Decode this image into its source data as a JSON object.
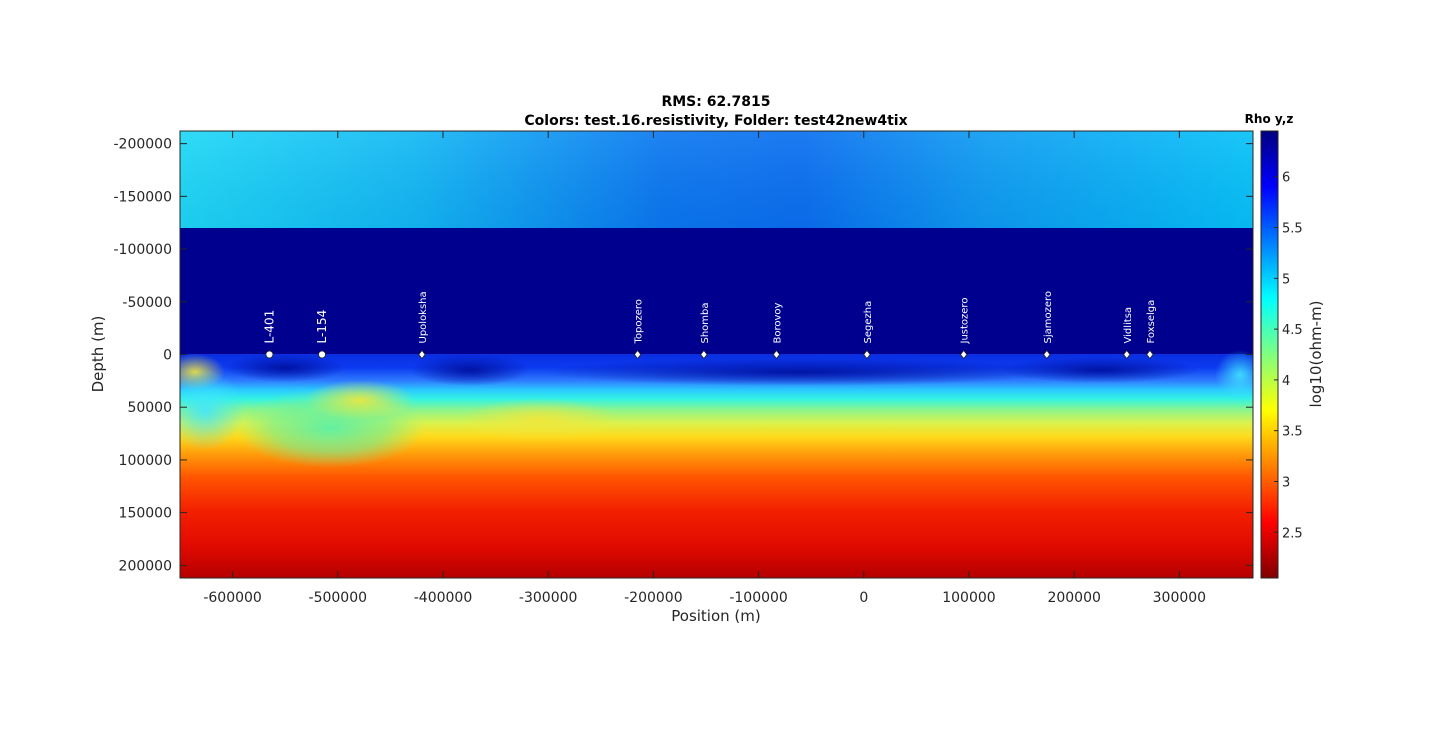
{
  "title": {
    "line1": "RMS: 62.7815",
    "line2": "Colors: test.16.resistivity, Folder: test42new4tix"
  },
  "colorbar": {
    "title": "Rho y,z",
    "label": "log10(ohm-m)",
    "range": [
      2.05,
      6.45
    ],
    "ticks": [
      {
        "value": 2.5,
        "label": "2.5"
      },
      {
        "value": 3,
        "label": "3"
      },
      {
        "value": 3.5,
        "label": "3.5"
      },
      {
        "value": 4,
        "label": "4"
      },
      {
        "value": 4.5,
        "label": "4.5"
      },
      {
        "value": 5,
        "label": "5"
      },
      {
        "value": 5.5,
        "label": "5.5"
      },
      {
        "value": 6,
        "label": "6"
      }
    ],
    "colormap": "jet"
  },
  "chart_data": {
    "type": "heatmap",
    "title": "RMS: 62.7815 / Colors: test.16.resistivity, Folder: test42new4tix",
    "xlabel": "Position (m)",
    "ylabel": "Depth (m)",
    "xlim": [
      -650000,
      370000
    ],
    "ylim": [
      -212000,
      212000
    ],
    "y_reversed": true,
    "grid": false,
    "x_ticks": [
      {
        "value": -600000,
        "label": "-600000"
      },
      {
        "value": -500000,
        "label": "-500000"
      },
      {
        "value": -400000,
        "label": "-400000"
      },
      {
        "value": -300000,
        "label": "-300000"
      },
      {
        "value": -200000,
        "label": "-200000"
      },
      {
        "value": -100000,
        "label": "-100000"
      },
      {
        "value": 0,
        "label": "0"
      },
      {
        "value": 100000,
        "label": "100000"
      },
      {
        "value": 200000,
        "label": "200000"
      },
      {
        "value": 300000,
        "label": "300000"
      }
    ],
    "y_ticks": [
      {
        "value": -200000,
        "label": "-200000"
      },
      {
        "value": -150000,
        "label": "-150000"
      },
      {
        "value": -100000,
        "label": "-100000"
      },
      {
        "value": -50000,
        "label": "-50000"
      },
      {
        "value": 0,
        "label": "0"
      },
      {
        "value": 50000,
        "label": "50000"
      },
      {
        "value": 100000,
        "label": "100000"
      },
      {
        "value": 150000,
        "label": "150000"
      },
      {
        "value": 200000,
        "label": "200000"
      }
    ],
    "layers": [
      {
        "depth_top": -212000,
        "depth_bottom": -120000,
        "log10_rho_approx": 5.1,
        "note": "air/top layer"
      },
      {
        "depth_top": -120000,
        "depth_bottom": 0,
        "log10_rho_approx": 6.45
      },
      {
        "depth_top": 0,
        "depth_bottom": 35000,
        "log10_rho_approx": 5.6
      },
      {
        "depth_top": 35000,
        "depth_bottom": 65000,
        "log10_rho_approx": 4.5
      },
      {
        "depth_top": 65000,
        "depth_bottom": 100000,
        "log10_rho_approx": 3.6
      },
      {
        "depth_top": 100000,
        "depth_bottom": 150000,
        "log10_rho_approx": 2.9
      },
      {
        "depth_top": 150000,
        "depth_bottom": 212000,
        "log10_rho_approx": 2.4
      }
    ],
    "stations": [
      {
        "name": "L-401",
        "x": -565000,
        "depth": 0,
        "marker": "circle"
      },
      {
        "name": "L-154",
        "x": -515000,
        "depth": 0,
        "marker": "circle"
      },
      {
        "name": "Upoloksha",
        "x": -420000,
        "depth": 0,
        "marker": "diamond"
      },
      {
        "name": "Topozero",
        "x": -215000,
        "depth": 0,
        "marker": "diamond"
      },
      {
        "name": "Shomba",
        "x": -152000,
        "depth": 0,
        "marker": "diamond"
      },
      {
        "name": "Borovoy",
        "x": -83000,
        "depth": 0,
        "marker": "diamond"
      },
      {
        "name": "Segezha",
        "x": 3000,
        "depth": 0,
        "marker": "diamond"
      },
      {
        "name": "Justozero",
        "x": 95000,
        "depth": 0,
        "marker": "diamond"
      },
      {
        "name": "Sjamozero",
        "x": 174000,
        "depth": 0,
        "marker": "diamond"
      },
      {
        "name": "Vidlitsa",
        "x": 250000,
        "depth": 0,
        "marker": "diamond"
      },
      {
        "name": "Foxselga",
        "x": 272000,
        "depth": 0,
        "marker": "diamond"
      }
    ]
  }
}
